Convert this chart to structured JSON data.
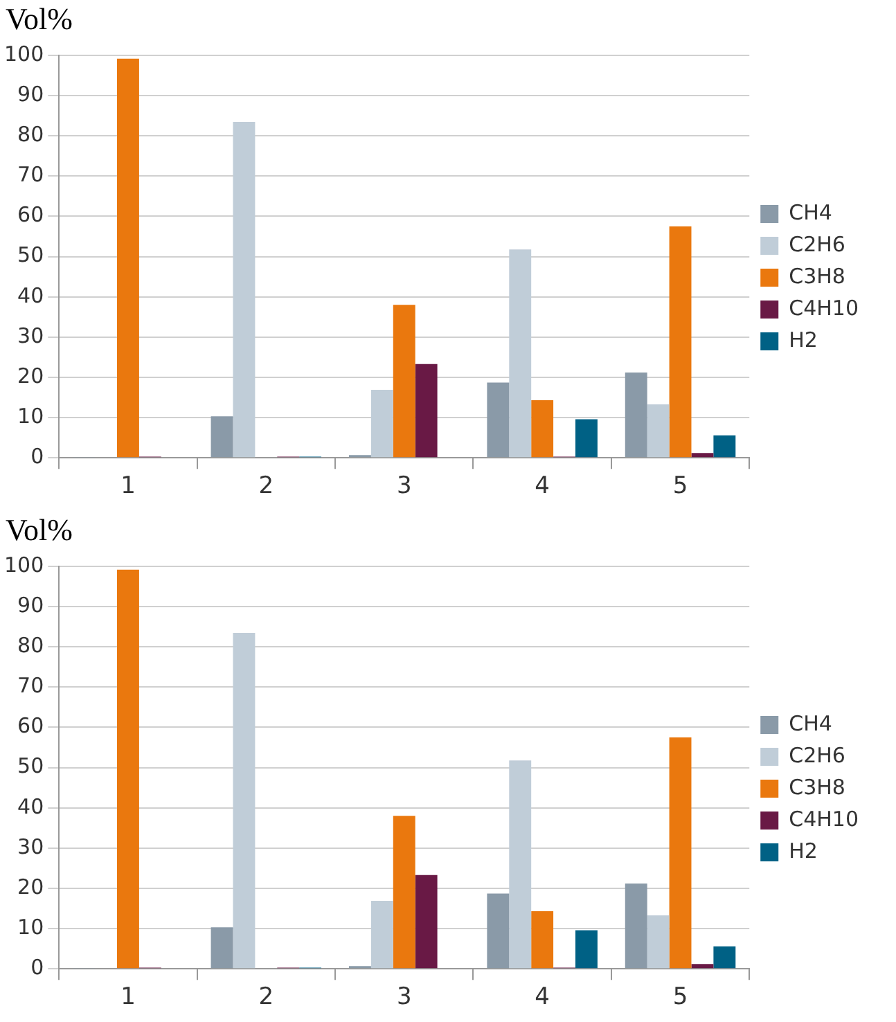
{
  "chart_data": [
    {
      "type": "bar",
      "ylabel": "Vol%",
      "categories": [
        "1",
        "2",
        "3",
        "4",
        "5"
      ],
      "series": [
        {
          "name": "CH4",
          "color": "#8a9aa8",
          "values": [
            0.2,
            10.3,
            0.7,
            18.7,
            21.2
          ]
        },
        {
          "name": "C2H6",
          "color": "#c0cdd8",
          "values": [
            null,
            83.5,
            16.9,
            51.8,
            13.3
          ]
        },
        {
          "name": "C3H8",
          "color": "#ea780e",
          "values": [
            99.2,
            null,
            38,
            14.3,
            57.5
          ]
        },
        {
          "name": "C4H10",
          "color": "#691945",
          "values": [
            0.3,
            0.3,
            23.3,
            0.3,
            1.2
          ]
        },
        {
          "name": "H2",
          "color": "#006185",
          "values": [
            0,
            0.3,
            0,
            9.6,
            5.6
          ]
        }
      ],
      "ylim": [
        0,
        100
      ],
      "yticks": [
        0,
        10,
        20,
        30,
        40,
        50,
        60,
        70,
        80,
        90,
        100
      ],
      "grid": "y",
      "legend": "right"
    },
    {
      "type": "bar",
      "ylabel": "Vol%",
      "categories": [
        "1",
        "2",
        "3",
        "4",
        "5"
      ],
      "series": [
        {
          "name": "CH4",
          "color": "#8a9aa8",
          "values": [
            0.2,
            10.3,
            0.7,
            18.7,
            21.2
          ]
        },
        {
          "name": "C2H6",
          "color": "#c0cdd8",
          "values": [
            null,
            83.5,
            16.9,
            51.8,
            13.3
          ]
        },
        {
          "name": "C3H8",
          "color": "#ea780e",
          "values": [
            99.2,
            null,
            38,
            14.3,
            57.5
          ]
        },
        {
          "name": "C4H10",
          "color": "#691945",
          "values": [
            0.3,
            0.3,
            23.3,
            0.3,
            1.2
          ]
        },
        {
          "name": "H2",
          "color": "#006185",
          "values": [
            0,
            0.3,
            0,
            9.6,
            5.6
          ]
        }
      ],
      "ylim": [
        0,
        100
      ],
      "yticks": [
        0,
        10,
        20,
        30,
        40,
        50,
        60,
        70,
        80,
        90,
        100
      ],
      "grid": "y",
      "legend": "right"
    }
  ]
}
